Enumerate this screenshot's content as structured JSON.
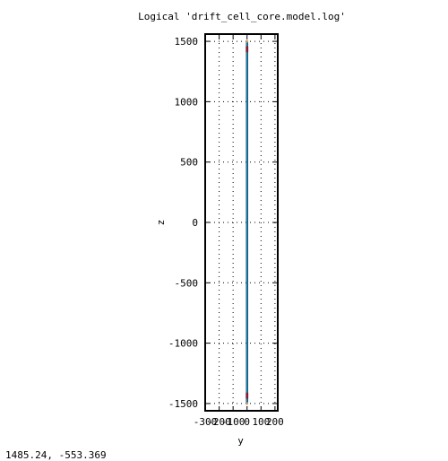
{
  "chart_data": {
    "type": "diagram",
    "title": "Logical 'drift_cell_core.model.log'",
    "xlabel": "y",
    "ylabel": "z",
    "xlim": [
      -300,
      220
    ],
    "ylim": [
      -1560,
      1560
    ],
    "x_ticks": [
      -300,
      -200,
      -100,
      0,
      100,
      200
    ],
    "x_tick_labels": [
      "-300",
      "-200",
      "-100",
      "0",
      "100",
      "200"
    ],
    "y_ticks": [
      -1500,
      -1000,
      -500,
      0,
      500,
      1000,
      1500
    ],
    "y_tick_labels": [
      "-1500",
      "-1000",
      "-500",
      "0",
      "500",
      "1000",
      "1500"
    ],
    "grid": true,
    "shapes": [
      {
        "name": "outer-tube",
        "y_range": [
          -8,
          8
        ],
        "z_range": [
          -1510,
          1510
        ],
        "color": "#c8a070"
      },
      {
        "name": "inner-core",
        "y_range": [
          -5,
          5
        ],
        "z_range": [
          -1490,
          1490
        ],
        "color": "#00bfff"
      },
      {
        "name": "top-endcap",
        "y_range": [
          -9,
          9
        ],
        "z_range": [
          1410,
          1460
        ],
        "color": "#ff0000"
      },
      {
        "name": "bottom-endcap",
        "y_range": [
          -9,
          9
        ],
        "z_range": [
          -1460,
          -1410
        ],
        "color": "#ff0000"
      }
    ]
  },
  "status": {
    "cursor_readout": "1485.24, -553.369"
  }
}
